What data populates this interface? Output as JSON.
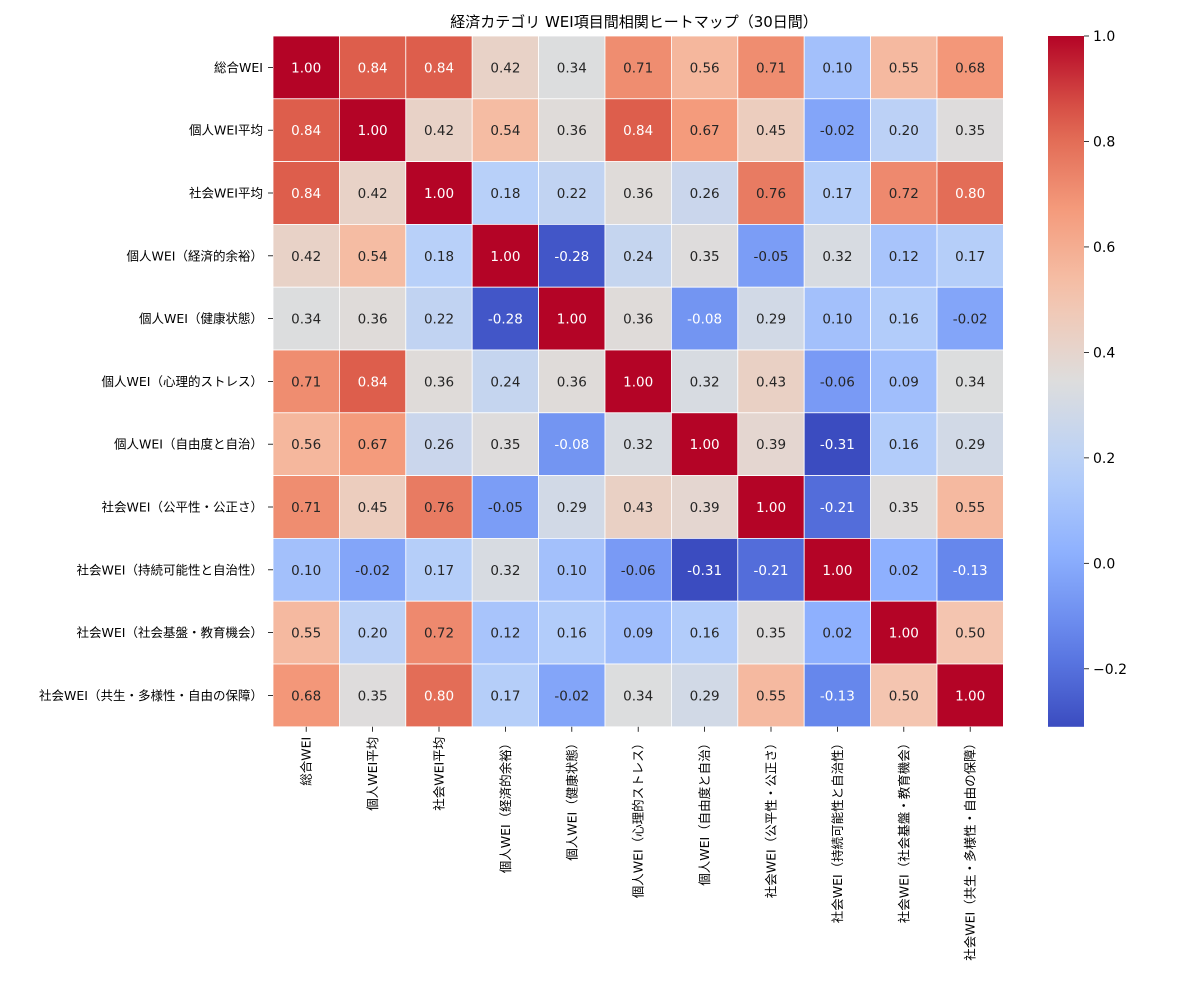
{
  "chart_data": {
    "type": "heatmap",
    "title": "経済カテゴリ WEI項目間相関ヒートマップ（30日間）",
    "labels": [
      "総合WEI",
      "個人WEI平均",
      "社会WEI平均",
      "個人WEI（経済的余裕）",
      "個人WEI（健康状態）",
      "個人WEI（心理的ストレス）",
      "個人WEI（自由度と自治）",
      "社会WEI（公平性・公正さ）",
      "社会WEI（持続可能性と自治性）",
      "社会WEI（社会基盤・教育機会）",
      "社会WEI（共生・多様性・自由の保障）"
    ],
    "matrix": [
      [
        1.0,
        0.84,
        0.84,
        0.42,
        0.34,
        0.71,
        0.56,
        0.71,
        0.1,
        0.55,
        0.68
      ],
      [
        0.84,
        1.0,
        0.42,
        0.54,
        0.36,
        0.84,
        0.67,
        0.45,
        -0.02,
        0.2,
        0.35
      ],
      [
        0.84,
        0.42,
        1.0,
        0.18,
        0.22,
        0.36,
        0.26,
        0.76,
        0.17,
        0.72,
        0.8
      ],
      [
        0.42,
        0.54,
        0.18,
        1.0,
        -0.28,
        0.24,
        0.35,
        -0.05,
        0.32,
        0.12,
        0.17
      ],
      [
        0.34,
        0.36,
        0.22,
        -0.28,
        1.0,
        0.36,
        -0.08,
        0.29,
        0.1,
        0.16,
        -0.02
      ],
      [
        0.71,
        0.84,
        0.36,
        0.24,
        0.36,
        1.0,
        0.32,
        0.43,
        -0.06,
        0.09,
        0.34
      ],
      [
        0.56,
        0.67,
        0.26,
        0.35,
        -0.08,
        0.32,
        1.0,
        0.39,
        -0.31,
        0.16,
        0.29
      ],
      [
        0.71,
        0.45,
        0.76,
        -0.05,
        0.29,
        0.43,
        0.39,
        1.0,
        -0.21,
        0.35,
        0.55
      ],
      [
        0.1,
        -0.02,
        0.17,
        0.32,
        0.1,
        -0.06,
        -0.31,
        -0.21,
        1.0,
        0.02,
        -0.13
      ],
      [
        0.55,
        0.2,
        0.72,
        0.12,
        0.16,
        0.09,
        0.16,
        0.35,
        0.02,
        1.0,
        0.5
      ],
      [
        0.68,
        0.35,
        0.8,
        0.17,
        -0.02,
        0.34,
        0.29,
        0.55,
        -0.13,
        0.5,
        1.0
      ]
    ],
    "value_range": [
      -0.31,
      1.0
    ],
    "colormap": "coolwarm",
    "colorbar_ticks": [
      -0.2,
      0.0,
      0.2,
      0.4,
      0.6,
      0.8,
      1.0
    ],
    "colorbar_tick_labels": [
      "−0.2",
      "0.0",
      "0.2",
      "0.4",
      "0.6",
      "0.8",
      "1.0"
    ],
    "annotate": true,
    "cell_border_color": "#ffffff"
  }
}
